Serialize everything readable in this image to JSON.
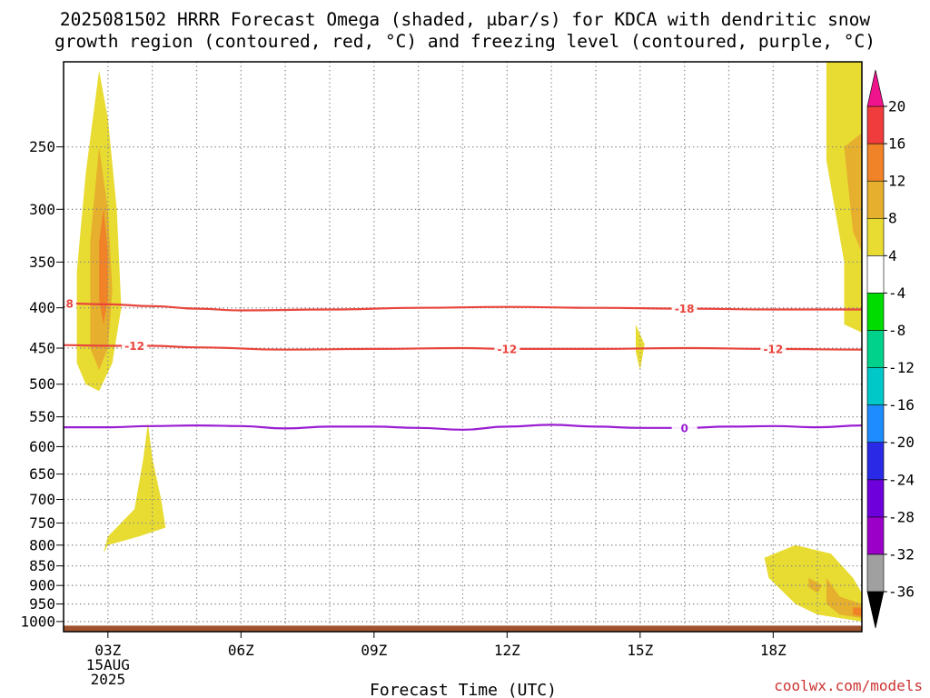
{
  "title_line1": "2025081502 HRRR Forecast Omega (shaded, μbar/s) for KDCA with dendritic snow",
  "title_line2": "growth region (contoured, red, °C) and freezing level (contoured, purple, °C)",
  "credit": "coolwx.com/models",
  "chart_data": {
    "type": "heatmap",
    "xlabel": "Forecast Time (UTC)",
    "x_range_hours_utc": [
      2,
      20
    ],
    "x_ticks": [
      {
        "hour": 3,
        "label": "03Z",
        "sub1": "15AUG",
        "sub2": "2025"
      },
      {
        "hour": 6,
        "label": "06Z"
      },
      {
        "hour": 9,
        "label": "09Z"
      },
      {
        "hour": 12,
        "label": "12Z"
      },
      {
        "hour": 15,
        "label": "15Z"
      },
      {
        "hour": 18,
        "label": "18Z"
      }
    ],
    "y_scale": "log-pressure (inverted)",
    "y_range_mb": [
      1030,
      195
    ],
    "y_ticks": [
      250,
      300,
      350,
      400,
      450,
      500,
      550,
      600,
      650,
      700,
      750,
      800,
      850,
      900,
      950,
      1000
    ],
    "grid": true,
    "ground_below_mb": 1012,
    "ground_color": "#a0522d",
    "colorbar": {
      "levels": [
        -36,
        -32,
        -28,
        -24,
        -20,
        -16,
        -12,
        -8,
        -4,
        4,
        8,
        12,
        16,
        20
      ],
      "colors": [
        "#000000",
        "#a0a0a0",
        "#9a00c8",
        "#6e00dc",
        "#2a2ae6",
        "#1e8cff",
        "#00c8c8",
        "#00d28c",
        "#00dc00",
        "#ffffff",
        "#e8dc32",
        "#e6af2d",
        "#f08228",
        "#f03c3c",
        "#f0148c"
      ]
    },
    "contours": [
      {
        "name": "-18",
        "color": "#e8453c",
        "label_hours": [
          2.0,
          16.0
        ],
        "points": [
          [
            2.0,
            395
          ],
          [
            3.0,
            396
          ],
          [
            4.0,
            398
          ],
          [
            5.0,
            401
          ],
          [
            6.0,
            403
          ],
          [
            8.0,
            402
          ],
          [
            10.0,
            400
          ],
          [
            12.0,
            399
          ],
          [
            14.0,
            400
          ],
          [
            16.0,
            401
          ],
          [
            18.0,
            402
          ],
          [
            20.0,
            402
          ]
        ]
      },
      {
        "name": "-12",
        "color": "#e8453c",
        "label_hours": [
          3.6,
          12.0,
          18.0
        ],
        "points": [
          [
            2.0,
            446
          ],
          [
            3.0,
            447
          ],
          [
            4.0,
            447
          ],
          [
            5.0,
            449
          ],
          [
            7.0,
            452
          ],
          [
            9.0,
            451
          ],
          [
            11.0,
            450
          ],
          [
            12.0,
            451
          ],
          [
            14.0,
            451
          ],
          [
            16.0,
            450
          ],
          [
            18.0,
            451
          ],
          [
            20.0,
            452
          ]
        ]
      },
      {
        "name": "0",
        "color": "#9a1ed2",
        "label_hours": [
          16.0
        ],
        "points": [
          [
            2.0,
            567
          ],
          [
            3.0,
            567
          ],
          [
            4.0,
            565
          ],
          [
            5.0,
            564
          ],
          [
            6.0,
            565
          ],
          [
            7.0,
            569
          ],
          [
            8.0,
            566
          ],
          [
            9.0,
            566
          ],
          [
            10.0,
            568
          ],
          [
            11.0,
            571
          ],
          [
            12.0,
            566
          ],
          [
            13.0,
            563
          ],
          [
            14.0,
            566
          ],
          [
            15.0,
            568
          ],
          [
            16.0,
            568
          ],
          [
            17.0,
            566
          ],
          [
            18.0,
            565
          ],
          [
            19.0,
            567
          ],
          [
            20.0,
            564
          ]
        ]
      }
    ],
    "shaded_regions": [
      {
        "value": 4,
        "points": [
          [
            2.3,
            470
          ],
          [
            2.3,
            360
          ],
          [
            2.5,
            270
          ],
          [
            2.8,
            200
          ],
          [
            3.0,
            230
          ],
          [
            3.2,
            300
          ],
          [
            3.3,
            400
          ],
          [
            3.1,
            470
          ],
          [
            2.8,
            510
          ],
          [
            2.5,
            500
          ]
        ]
      },
      {
        "value": 8,
        "points": [
          [
            2.6,
            450
          ],
          [
            2.6,
            330
          ],
          [
            2.8,
            250
          ],
          [
            3.0,
            300
          ],
          [
            3.1,
            380
          ],
          [
            3.0,
            450
          ],
          [
            2.8,
            480
          ]
        ]
      },
      {
        "value": 12,
        "points": [
          [
            2.8,
            390
          ],
          [
            2.8,
            330
          ],
          [
            2.9,
            300
          ],
          [
            3.0,
            340
          ],
          [
            3.0,
            390
          ],
          [
            2.9,
            420
          ]
        ]
      },
      {
        "value": -4,
        "points": [
          [
            3.8,
            195
          ],
          [
            4.3,
            195
          ],
          [
            4.2,
            260
          ],
          [
            4.2,
            350
          ],
          [
            4.1,
            390
          ],
          [
            4.2,
            440
          ],
          [
            4.0,
            470
          ],
          [
            3.85,
            440
          ],
          [
            3.9,
            390
          ],
          [
            3.85,
            250
          ]
        ]
      },
      {
        "value": 4,
        "points": [
          [
            3.9,
            560
          ],
          [
            4.0,
            620
          ],
          [
            4.2,
            700
          ],
          [
            4.3,
            760
          ],
          [
            3.7,
            780
          ],
          [
            3.0,
            800
          ],
          [
            2.9,
            820
          ],
          [
            3.0,
            780
          ],
          [
            3.6,
            720
          ],
          [
            3.8,
            620
          ]
        ]
      },
      {
        "value": 4,
        "points": [
          [
            14.9,
            420
          ],
          [
            15.1,
            445
          ],
          [
            15.0,
            480
          ],
          [
            14.9,
            455
          ]
        ]
      },
      {
        "value": 4,
        "points": [
          [
            19.2,
            195
          ],
          [
            20.0,
            195
          ],
          [
            20.0,
            430
          ],
          [
            19.6,
            420
          ],
          [
            19.6,
            350
          ],
          [
            19.2,
            260
          ]
        ]
      },
      {
        "value": 8,
        "points": [
          [
            19.6,
            250
          ],
          [
            20.0,
            240
          ],
          [
            20.0,
            340
          ],
          [
            19.8,
            320
          ]
        ]
      },
      {
        "value": 4,
        "points": [
          [
            17.8,
            830
          ],
          [
            18.5,
            800
          ],
          [
            19.3,
            820
          ],
          [
            19.8,
            880
          ],
          [
            20.0,
            920
          ],
          [
            20.0,
            1000
          ],
          [
            19.0,
            980
          ],
          [
            18.5,
            950
          ],
          [
            17.9,
            880
          ]
        ]
      },
      {
        "value": 8,
        "points": [
          [
            19.2,
            880
          ],
          [
            19.5,
            930
          ],
          [
            20.0,
            950
          ],
          [
            20.0,
            990
          ],
          [
            19.5,
            980
          ],
          [
            19.2,
            950
          ]
        ]
      },
      {
        "value": 12,
        "points": [
          [
            19.8,
            960
          ],
          [
            20.0,
            960
          ],
          [
            20.0,
            985
          ],
          [
            19.8,
            980
          ]
        ]
      },
      {
        "value": 8,
        "points": [
          [
            18.8,
            880
          ],
          [
            19.1,
            900
          ],
          [
            19.0,
            920
          ],
          [
            18.8,
            905
          ]
        ]
      },
      {
        "value": -4,
        "points": [
          [
            6.9,
            720
          ],
          [
            7.1,
            750
          ],
          [
            7.0,
            795
          ],
          [
            6.9,
            770
          ],
          [
            6.85,
            745
          ]
        ]
      },
      {
        "value": -4,
        "points": [
          [
            7.6,
            830
          ],
          [
            8.0,
            820
          ],
          [
            8.5,
            840
          ],
          [
            8.3,
            880
          ],
          [
            7.9,
            920
          ],
          [
            7.6,
            880
          ]
        ]
      },
      {
        "value": -4,
        "points": [
          [
            9.7,
            860
          ],
          [
            10.5,
            840
          ],
          [
            11.5,
            840
          ],
          [
            11.7,
            800
          ],
          [
            12.0,
            760
          ],
          [
            12.1,
            820
          ],
          [
            12.0,
            880
          ],
          [
            11.0,
            890
          ],
          [
            10.5,
            900
          ],
          [
            10.3,
            930
          ],
          [
            10.0,
            950
          ],
          [
            9.8,
            920
          ]
        ]
      },
      {
        "value": -4,
        "points": [
          [
            14.0,
            900
          ],
          [
            14.5,
            860
          ],
          [
            14.8,
            820
          ],
          [
            15.0,
            760
          ],
          [
            15.3,
            820
          ],
          [
            15.3,
            880
          ],
          [
            14.6,
            900
          ],
          [
            14.1,
            930
          ],
          [
            13.8,
            930
          ]
        ]
      },
      {
        "value": -4,
        "points": [
          [
            17.0,
            680
          ],
          [
            18.0,
            660
          ],
          [
            19.0,
            680
          ],
          [
            19.8,
            680
          ],
          [
            20.0,
            660
          ],
          [
            20.0,
            760
          ],
          [
            19.0,
            720
          ],
          [
            18.5,
            720
          ],
          [
            17.5,
            760
          ],
          [
            17.0,
            720
          ]
        ]
      },
      {
        "value": -4,
        "points": [
          [
            19.9,
            830
          ],
          [
            20.0,
            820
          ],
          [
            20.0,
            860
          ]
        ]
      }
    ]
  }
}
